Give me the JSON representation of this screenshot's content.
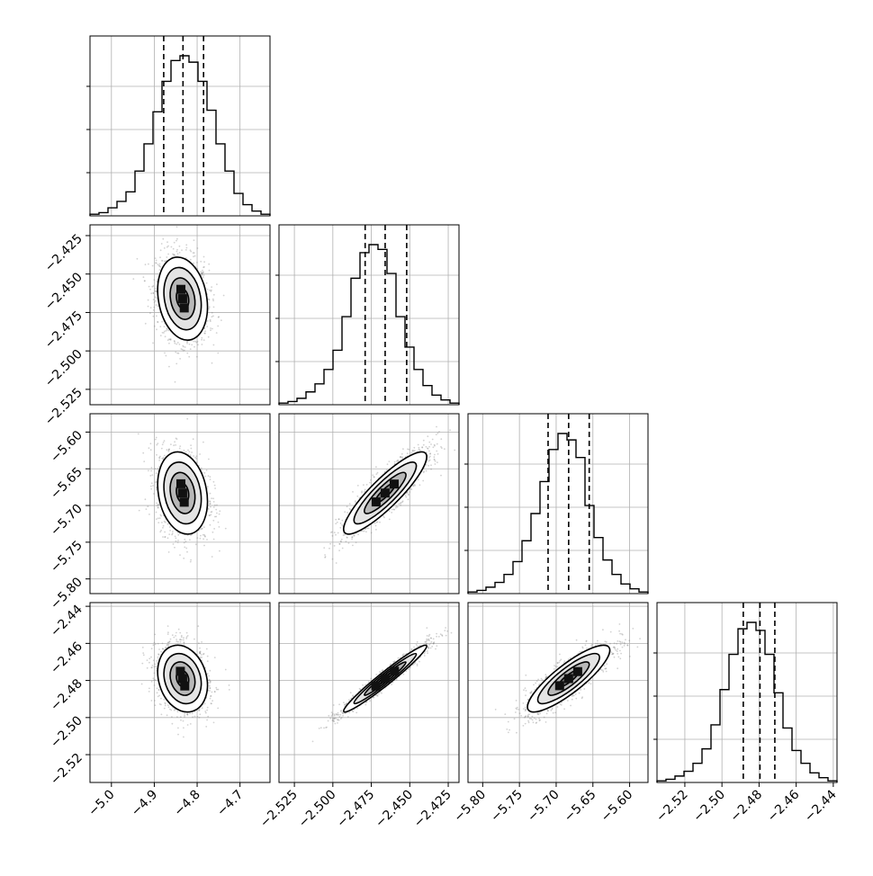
{
  "chart_data": {
    "type": "corner",
    "description_parameters": 4,
    "colors": {
      "frame": "#000000",
      "grid": "#b0b0b0",
      "scatter": "#7f7f7f",
      "density": "#000000",
      "fill": "#ffffff"
    },
    "grid": true,
    "params": [
      {
        "range": [
          -5.05,
          -4.63
        ],
        "ticks": [
          -5.0,
          -4.9,
          -4.8,
          -4.7
        ],
        "tick_labels": [
          "−5.0",
          "−4.9",
          "−4.8",
          "−4.7"
        ],
        "quantiles": [
          -4.878,
          -4.833,
          -4.785
        ],
        "center": -4.834,
        "sd": 0.029,
        "hist": [
          0.01,
          0.02,
          0.05,
          0.09,
          0.15,
          0.28,
          0.45,
          0.65,
          0.84,
          0.97,
          1.0,
          0.96,
          0.84,
          0.66,
          0.45,
          0.28,
          0.14,
          0.07,
          0.03,
          0.01
        ]
      },
      {
        "range": [
          -2.535,
          -2.418
        ],
        "ticks": [
          -2.525,
          -2.5,
          -2.475,
          -2.45,
          -2.425
        ],
        "tick_labels": [
          "−2.525",
          "−2.500",
          "−2.475",
          "−2.450",
          "−2.425"
        ],
        "quantiles": [
          -2.479,
          -2.466,
          -2.452
        ],
        "center": -2.466,
        "sd": 0.0135,
        "hist": [
          0.01,
          0.02,
          0.04,
          0.08,
          0.13,
          0.22,
          0.34,
          0.55,
          0.79,
          0.95,
          1.0,
          0.97,
          0.82,
          0.55,
          0.36,
          0.22,
          0.12,
          0.06,
          0.03,
          0.01
        ]
      },
      {
        "range": [
          -5.82,
          -5.575
        ],
        "ticks": [
          -5.8,
          -5.75,
          -5.7,
          -5.65,
          -5.6
        ],
        "tick_labels": [
          "−5.80",
          "−5.75",
          "−5.70",
          "−5.65",
          "−5.60"
        ],
        "quantiles": [
          -5.711,
          -5.683,
          -5.655
        ],
        "center": -5.683,
        "sd": 0.028,
        "hist": [
          0.01,
          0.02,
          0.04,
          0.07,
          0.12,
          0.2,
          0.33,
          0.5,
          0.7,
          0.9,
          1.0,
          0.96,
          0.85,
          0.55,
          0.35,
          0.21,
          0.12,
          0.06,
          0.03,
          0.01
        ]
      },
      {
        "range": [
          -2.535,
          -2.438
        ],
        "ticks": [
          -2.52,
          -2.5,
          -2.48,
          -2.46,
          -2.44
        ],
        "tick_labels": [
          "−2.52",
          "−2.50",
          "−2.48",
          "−2.46",
          "−2.44"
        ],
        "quantiles": [
          -2.4885,
          -2.4795,
          -2.4715
        ],
        "center": -2.479,
        "sd": 0.009,
        "hist": [
          0.01,
          0.02,
          0.04,
          0.07,
          0.12,
          0.21,
          0.36,
          0.58,
          0.8,
          0.96,
          1.0,
          0.95,
          0.8,
          0.56,
          0.34,
          0.2,
          0.12,
          0.06,
          0.03,
          0.01
        ]
      }
    ],
    "correlations": {
      "1-0": -0.2,
      "2-0": -0.2,
      "2-1": 0.88,
      "3-0": -0.2,
      "3-1": 0.97,
      "3-2": 0.85
    },
    "contour_levels_sigma": [
      0.5,
      1.0,
      1.5,
      2.0
    ]
  }
}
